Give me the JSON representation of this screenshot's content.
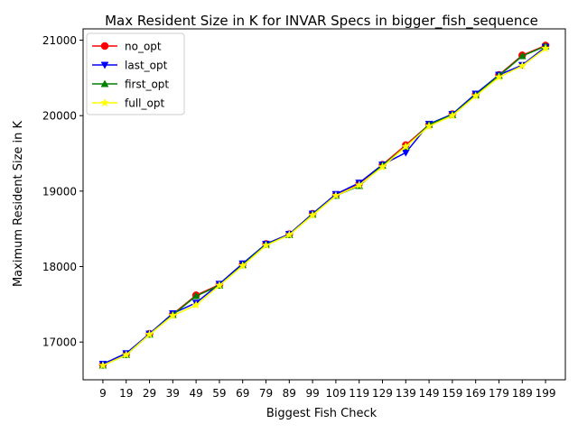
{
  "chart_data": {
    "type": "line",
    "title": "Max Resident Size in K for INVAR Specs in bigger_fish_sequence",
    "xlabel": "Biggest Fish Check",
    "ylabel": "Maximum Resident Size in K",
    "x": [
      9,
      19,
      29,
      39,
      49,
      59,
      69,
      79,
      89,
      99,
      109,
      119,
      129,
      139,
      149,
      159,
      169,
      179,
      189,
      199
    ],
    "x_tick_labels": [
      "9",
      "19",
      "29",
      "39",
      "49",
      "59",
      "69",
      "79",
      "89",
      "99",
      "109",
      "119",
      "129",
      "139",
      "149",
      "159",
      "169",
      "179",
      "189",
      "199"
    ],
    "xlim": [
      0.5,
      207.5
    ],
    "ylim": [
      16500,
      21150
    ],
    "y_ticks": [
      17000,
      18000,
      19000,
      20000,
      21000
    ],
    "y_tick_labels": [
      "17000",
      "18000",
      "19000",
      "20000",
      "21000"
    ],
    "grid": false,
    "legend_position": "upper left",
    "series": [
      {
        "name": "no_opt",
        "color": "#ff0000",
        "marker": "circle",
        "values": [
          16700,
          16840,
          17110,
          17370,
          17620,
          17760,
          18030,
          18300,
          18430,
          18700,
          18950,
          19100,
          19350,
          19610,
          19880,
          20020,
          20280,
          20540,
          20800,
          20930
        ]
      },
      {
        "name": "last_opt",
        "color": "#0000ff",
        "marker": "triangle-down",
        "values": [
          16710,
          16850,
          17110,
          17380,
          17520,
          17770,
          18040,
          18300,
          18430,
          18700,
          18960,
          19110,
          19350,
          19510,
          19890,
          20020,
          20290,
          20540,
          20670,
          20910
        ]
      },
      {
        "name": "first_opt",
        "color": "#008000",
        "marker": "triangle-up",
        "values": [
          16690,
          16830,
          17100,
          17360,
          17610,
          17750,
          18020,
          18290,
          18420,
          18690,
          18940,
          19070,
          19340,
          19590,
          19880,
          20010,
          20270,
          20530,
          20790,
          20920
        ]
      },
      {
        "name": "full_opt",
        "color": "#ffff00",
        "marker": "star",
        "values": [
          16690,
          16830,
          17100,
          17350,
          17490,
          17750,
          18010,
          18280,
          18420,
          18680,
          18940,
          19080,
          19320,
          19590,
          19860,
          20000,
          20260,
          20510,
          20660,
          20890
        ]
      }
    ]
  }
}
